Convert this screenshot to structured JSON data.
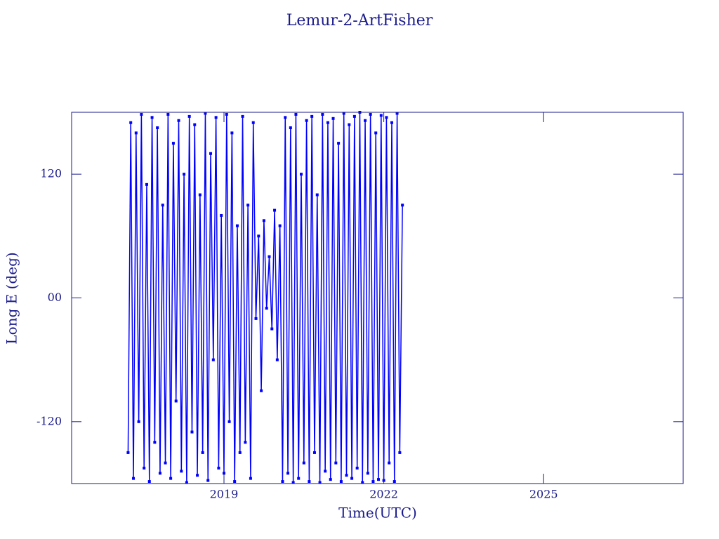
{
  "chart_data": {
    "type": "line",
    "title": "Lemur-2-ArtFisher",
    "x_label": "Time(UTC)",
    "y_label": "Long E (deg)",
    "color": "#0000ff",
    "markers": true,
    "xlim": [
      2016.14,
      2027.62
    ],
    "xticks": [
      2019,
      2022,
      2025
    ],
    "ylim": [
      -180,
      180
    ],
    "yticks": [
      -120,
      {
        "value": 0,
        "label": "00"
      },
      120
    ],
    "series": [
      {
        "name": "Lemur-2-ArtFisher",
        "color": "#0000ff",
        "x": [
          2017.2,
          2017.25,
          2017.3,
          2017.35,
          2017.4,
          2017.45,
          2017.5,
          2017.55,
          2017.6,
          2017.65,
          2017.7,
          2017.75,
          2017.8,
          2017.85,
          2017.9,
          2017.95,
          2018.0,
          2018.05,
          2018.1,
          2018.15,
          2018.2,
          2018.25,
          2018.3,
          2018.35,
          2018.4,
          2018.45,
          2018.5,
          2018.55,
          2018.6,
          2018.65,
          2018.7,
          2018.75,
          2018.8,
          2018.85,
          2018.9,
          2018.95,
          2019.0,
          2019.05,
          2019.1,
          2019.15,
          2019.2,
          2019.25,
          2019.3,
          2019.35,
          2019.4,
          2019.45,
          2019.5,
          2019.55,
          2019.6,
          2019.65,
          2019.7,
          2019.75,
          2019.8,
          2019.85,
          2019.9,
          2019.95,
          2020.0,
          2020.05,
          2020.1,
          2020.15,
          2020.2,
          2020.25,
          2020.3,
          2020.35,
          2020.4,
          2020.45,
          2020.5,
          2020.55,
          2020.6,
          2020.65,
          2020.7,
          2020.75,
          2020.8,
          2020.85,
          2020.9,
          2020.95,
          2021.0,
          2021.05,
          2021.1,
          2021.15,
          2021.2,
          2021.25,
          2021.3,
          2021.35,
          2021.4,
          2021.45,
          2021.5,
          2021.55,
          2021.6,
          2021.65,
          2021.7,
          2021.75,
          2021.8,
          2021.85,
          2021.9,
          2021.95,
          2022.0,
          2022.05,
          2022.1,
          2022.15,
          2022.2,
          2022.25,
          2022.3,
          2022.35
        ],
        "values": [
          -150,
          170,
          -175,
          160,
          -120,
          178,
          -165,
          110,
          -178,
          175,
          -140,
          165,
          -170,
          90,
          -160,
          178,
          -175,
          150,
          -100,
          172,
          -168,
          120,
          -179,
          176,
          -130,
          168,
          -172,
          100,
          -150,
          179,
          -177,
          140,
          -60,
          175,
          -165,
          80,
          -170,
          178,
          -120,
          160,
          -178,
          70,
          -150,
          176,
          -140,
          90,
          -175,
          170,
          -20,
          60,
          -90,
          75,
          -10,
          40,
          -30,
          85,
          -60,
          70,
          -178,
          175,
          -170,
          165,
          -179,
          178,
          -175,
          120,
          -160,
          172,
          -178,
          176,
          -150,
          100,
          -179,
          178,
          -168,
          170,
          -176,
          174,
          -160,
          150,
          -178,
          179,
          -172,
          168,
          -175,
          176,
          -165,
          180,
          -179,
          172,
          -170,
          178,
          -178,
          160,
          -176,
          177,
          -177,
          175,
          -160,
          170,
          -178,
          179,
          -150,
          90
        ]
      }
    ]
  }
}
